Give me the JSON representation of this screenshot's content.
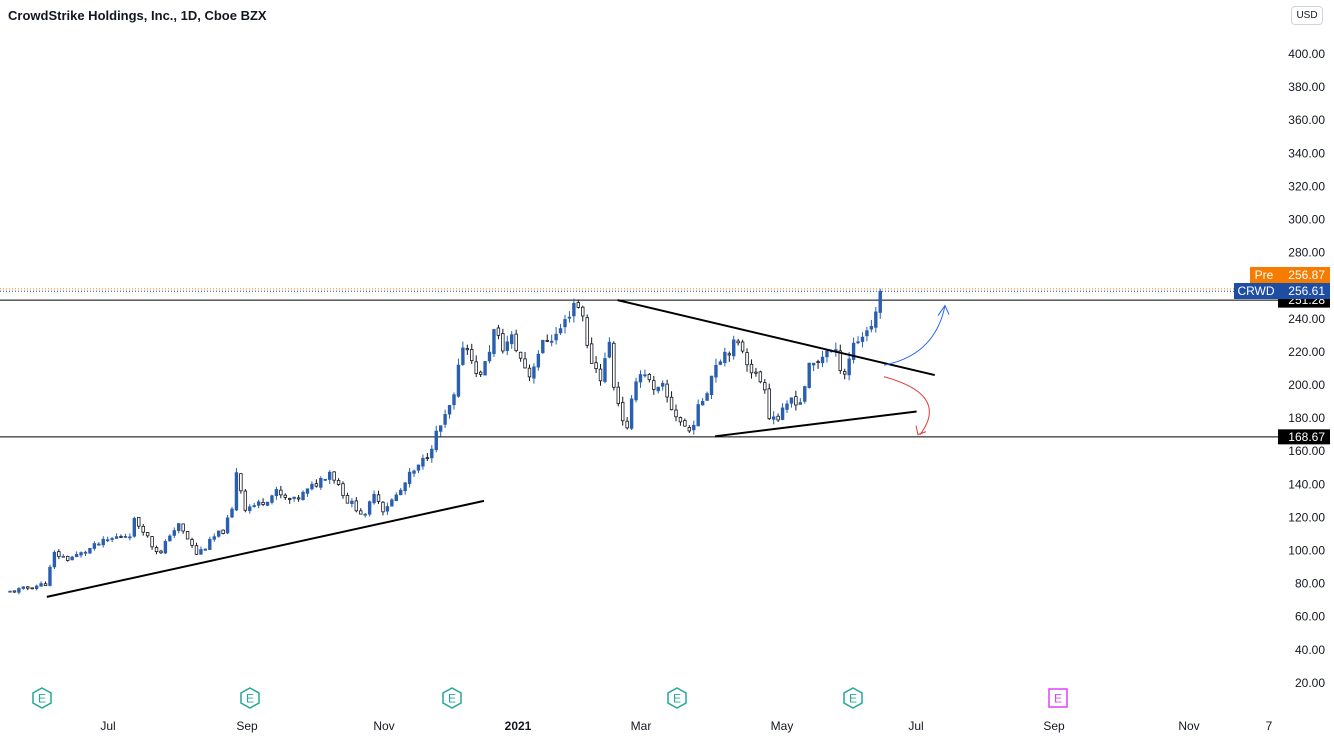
{
  "header": {
    "title": "CrowdStrike Holdings, Inc., 1D, Cboe BZX",
    "currency": "USD"
  },
  "colors": {
    "up": "#2a5fb0",
    "down": "#131722",
    "pre": "#f57c00",
    "crwd": "#1e4ea3",
    "level": "#000000",
    "arrow_up": "#2962ff",
    "arrow_down": "#e53935",
    "earnings": "#26a69a",
    "earnings_future": "#e040fb"
  },
  "chart_data": {
    "type": "candlestick",
    "title": "CrowdStrike Holdings, Inc., 1D, Cboe BZX",
    "ylim": [
      15,
      425
    ],
    "y_ticks": [
      "400.00",
      "380.00",
      "360.00",
      "340.00",
      "320.00",
      "300.00",
      "280.00",
      "260.00",
      "240.00",
      "220.00",
      "200.00",
      "180.00",
      "160.00",
      "140.00",
      "120.00",
      "100.00",
      "80.00",
      "60.00",
      "40.00",
      "20.00"
    ],
    "x_ticks": [
      "Jul",
      "Sep",
      "Nov",
      "2021",
      "Mar",
      "May",
      "Jul",
      "Sep",
      "Nov",
      "7"
    ],
    "close_path": [
      [
        0,
        75
      ],
      [
        5,
        78
      ],
      [
        8,
        80
      ],
      [
        10,
        98
      ],
      [
        13,
        95
      ],
      [
        16,
        98
      ],
      [
        20,
        104
      ],
      [
        24,
        108
      ],
      [
        27,
        110
      ],
      [
        28,
        118
      ],
      [
        30,
        113
      ],
      [
        32,
        103
      ],
      [
        34,
        98
      ],
      [
        36,
        110
      ],
      [
        38,
        115
      ],
      [
        40,
        107
      ],
      [
        42,
        98
      ],
      [
        44,
        102
      ],
      [
        46,
        108
      ],
      [
        48,
        112
      ],
      [
        50,
        124
      ],
      [
        51,
        148
      ],
      [
        53,
        126
      ],
      [
        56,
        128
      ],
      [
        60,
        135
      ],
      [
        62,
        131
      ],
      [
        64,
        130
      ],
      [
        67,
        136
      ],
      [
        70,
        143
      ],
      [
        72,
        148
      ],
      [
        74,
        140
      ],
      [
        76,
        130
      ],
      [
        78,
        126
      ],
      [
        80,
        120
      ],
      [
        82,
        136
      ],
      [
        84,
        125
      ],
      [
        86,
        130
      ],
      [
        88,
        136
      ],
      [
        90,
        145
      ],
      [
        92,
        150
      ],
      [
        94,
        158
      ],
      [
        96,
        170
      ],
      [
        98,
        180
      ],
      [
        100,
        192
      ],
      [
        102,
        225
      ],
      [
        104,
        218
      ],
      [
        105,
        205
      ],
      [
        107,
        212
      ],
      [
        109,
        232
      ],
      [
        111,
        223
      ],
      [
        113,
        228
      ],
      [
        115,
        216
      ],
      [
        117,
        206
      ],
      [
        119,
        220
      ],
      [
        121,
        228
      ],
      [
        123,
        230
      ],
      [
        125,
        238
      ],
      [
        127,
        250
      ],
      [
        129,
        244
      ],
      [
        130,
        222
      ],
      [
        131,
        215
      ],
      [
        133,
        205
      ],
      [
        135,
        225
      ],
      [
        136,
        200
      ],
      [
        138,
        180
      ],
      [
        139,
        172
      ],
      [
        141,
        205
      ],
      [
        143,
        208
      ],
      [
        145,
        195
      ],
      [
        147,
        198
      ],
      [
        149,
        186
      ],
      [
        151,
        178
      ],
      [
        153,
        172
      ],
      [
        155,
        185
      ],
      [
        157,
        198
      ],
      [
        159,
        214
      ],
      [
        161,
        220
      ],
      [
        163,
        224
      ],
      [
        165,
        222
      ],
      [
        166,
        215
      ],
      [
        168,
        205
      ],
      [
        170,
        200
      ],
      [
        171,
        182
      ],
      [
        173,
        180
      ],
      [
        175,
        186
      ],
      [
        176,
        192
      ],
      [
        178,
        190
      ],
      [
        180,
        210
      ],
      [
        182,
        214
      ],
      [
        184,
        222
      ],
      [
        186,
        218
      ],
      [
        187,
        212
      ],
      [
        188,
        208
      ],
      [
        190,
        225
      ],
      [
        192,
        230
      ],
      [
        194,
        237
      ],
      [
        195,
        244
      ],
      [
        196,
        256.61
      ]
    ],
    "trendlines": [
      {
        "name": "lower-support",
        "points": [
          [
            "2020-06-09",
            72
          ],
          [
            "2020-12-19",
            130
          ]
        ]
      },
      {
        "name": "triangle-upper",
        "points": [
          [
            "2021-02-16",
            251.28
          ],
          [
            "2021-07-06",
            206
          ]
        ]
      },
      {
        "name": "triangle-lower",
        "points": [
          [
            "2021-03-31",
            169
          ],
          [
            "2021-06-28",
            184
          ]
        ]
      }
    ],
    "levels": [
      {
        "name": "resistance",
        "value": 251.28,
        "label": "251.28"
      },
      {
        "name": "support",
        "value": 168.67,
        "label": "168.67"
      }
    ],
    "price_tags": [
      {
        "name": "pre",
        "label": "Pre",
        "value": 256.87,
        "text": "256.87"
      },
      {
        "name": "crwd",
        "label": "CRWD",
        "value": 256.61,
        "text": "256.61"
      }
    ],
    "earnings_markers": [
      {
        "label": "E",
        "future": false
      },
      {
        "label": "E",
        "future": false
      },
      {
        "label": "E",
        "future": false
      },
      {
        "label": "E",
        "future": false
      },
      {
        "label": "E",
        "future": false
      },
      {
        "label": "E",
        "future": true
      }
    ],
    "annotations": [
      {
        "name": "bullish-arrow",
        "from": 212,
        "to": 248
      },
      {
        "name": "bearish-arrow",
        "from": 205,
        "to": 170
      }
    ]
  }
}
